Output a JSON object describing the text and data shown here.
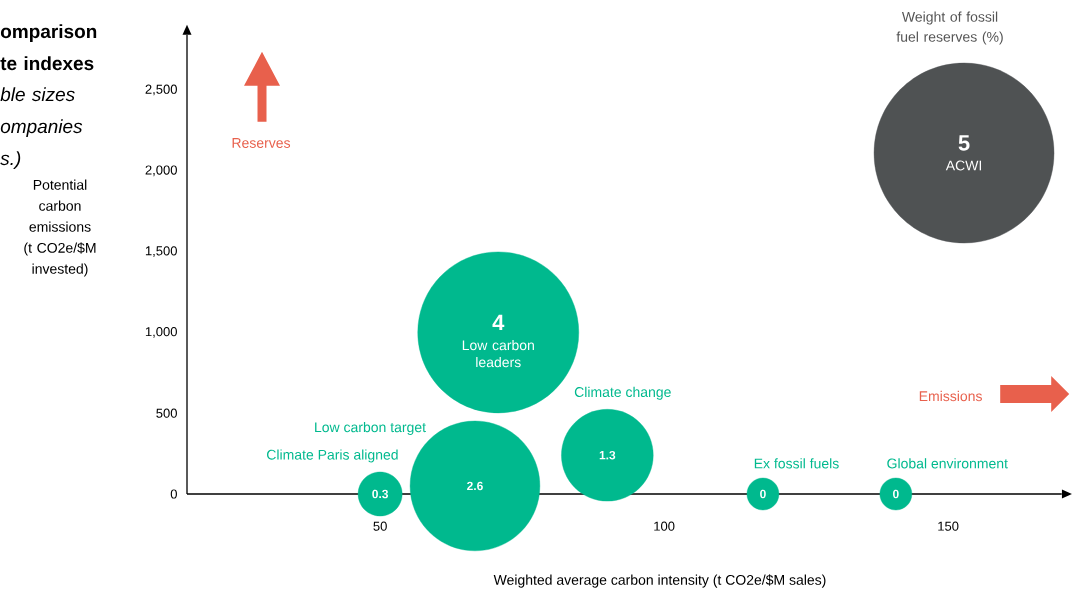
{
  "chart_data": {
    "type": "bubble",
    "title": "omparison te indexes",
    "subtitle": "ble sizes ompanies s.)",
    "xlabel": "Weighted average carbon intensity (t CO2e/$M sales)",
    "ylabel": "Potential carbon emissions (t CO2e/$M invested)",
    "annotations": [
      "Weight of fossil fuel reserves (%)",
      "Reserves",
      "Emissions"
    ],
    "xlim": [
      16,
      170
    ],
    "ylim": [
      0,
      2840
    ],
    "xticks": [
      50,
      100,
      150
    ],
    "yticks": [
      0,
      500,
      {
        "value": 1000,
        "label": "1,000"
      },
      {
        "value": 1500,
        "label": "1,500"
      },
      {
        "value": 2000,
        "label": "2,000"
      },
      {
        "value": 2500,
        "label": "2,500"
      }
    ],
    "series": [
      {
        "name": "Climate Paris aligned",
        "color": "#00b98e",
        "x": [
          50
        ],
        "values": [
          0
        ],
        "sizes": [
          0.3
        ],
        "value_labels": [
          "0.3"
        ]
      },
      {
        "name": "Low carbon target",
        "color": "#00b98e",
        "x": [
          66.7
        ],
        "values": [
          50
        ],
        "sizes": [
          2.6
        ],
        "value_labels": [
          "2.6"
        ]
      },
      {
        "name": "Low carbon leaders",
        "color": "#00b98e",
        "x": [
          70.8
        ],
        "values": [
          1000
        ],
        "sizes": [
          4
        ],
        "value_labels": [
          "4"
        ]
      },
      {
        "name": "Climate change",
        "color": "#00b98e",
        "x": [
          90
        ],
        "values": [
          240
        ],
        "sizes": [
          1.3
        ],
        "value_labels": [
          "1.3"
        ]
      },
      {
        "name": "Ex fossil fuels",
        "color": "#00b98e",
        "x": [
          117.4
        ],
        "values": [
          0
        ],
        "sizes": [
          null
        ],
        "value_labels": [
          "0"
        ]
      },
      {
        "name": "Global environment",
        "color": "#00b98e",
        "x": [
          140.8
        ],
        "values": [
          0
        ],
        "sizes": [
          null
        ],
        "value_labels": [
          "0"
        ]
      },
      {
        "name": "ACWI",
        "color": "#4f5253",
        "x": [
          152.8
        ],
        "values": [
          2110
        ],
        "sizes": [
          5
        ],
        "value_labels": [
          "5"
        ]
      }
    ]
  }
}
